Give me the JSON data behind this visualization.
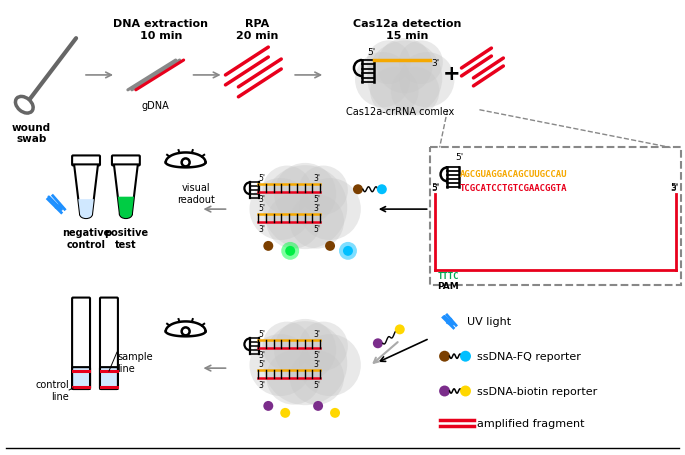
{
  "step1_label": "DNA extraction\n10 min",
  "step2_label": "RPA\n20 min",
  "step3_label": "Cas12a detection\n15 min",
  "wound_swab": "wound\nswab",
  "gDNA": "gDNA",
  "cas12a_label": "Cas12a-crRNA comlex",
  "visual_readout": "visual\nreadout",
  "negative_control": "negative\ncontrol",
  "positive_test": "positive\ntest",
  "pam_label": "PAM",
  "five_prime": "5'",
  "three_prime": "3'",
  "crRNA_seq": "AGCGUAGGACAGCUUGCCAU",
  "dna_seq": "TCGCATCCTGTCGAACGGTA",
  "tttc": "TTTC",
  "sample_line": "sample\nline",
  "control_line": "control\nline",
  "legend_uv": "UV light",
  "legend_fq": "ssDNA-FQ reporter",
  "legend_biotin": "ssDNA-biotin reporter",
  "legend_amp": "amplified fragment",
  "color_red": "#e8001c",
  "color_orange": "#f5a800",
  "color_green": "#00a651",
  "color_gray": "#888888",
  "color_blue": "#1e90ff",
  "color_brown": "#7B3F00",
  "color_yellow": "#FFD700",
  "color_purple": "#7B2D8B",
  "color_cyan": "#00BFFF",
  "color_cloudgray": "#c8c8c8",
  "color_lightblue": "#d0e8ff"
}
